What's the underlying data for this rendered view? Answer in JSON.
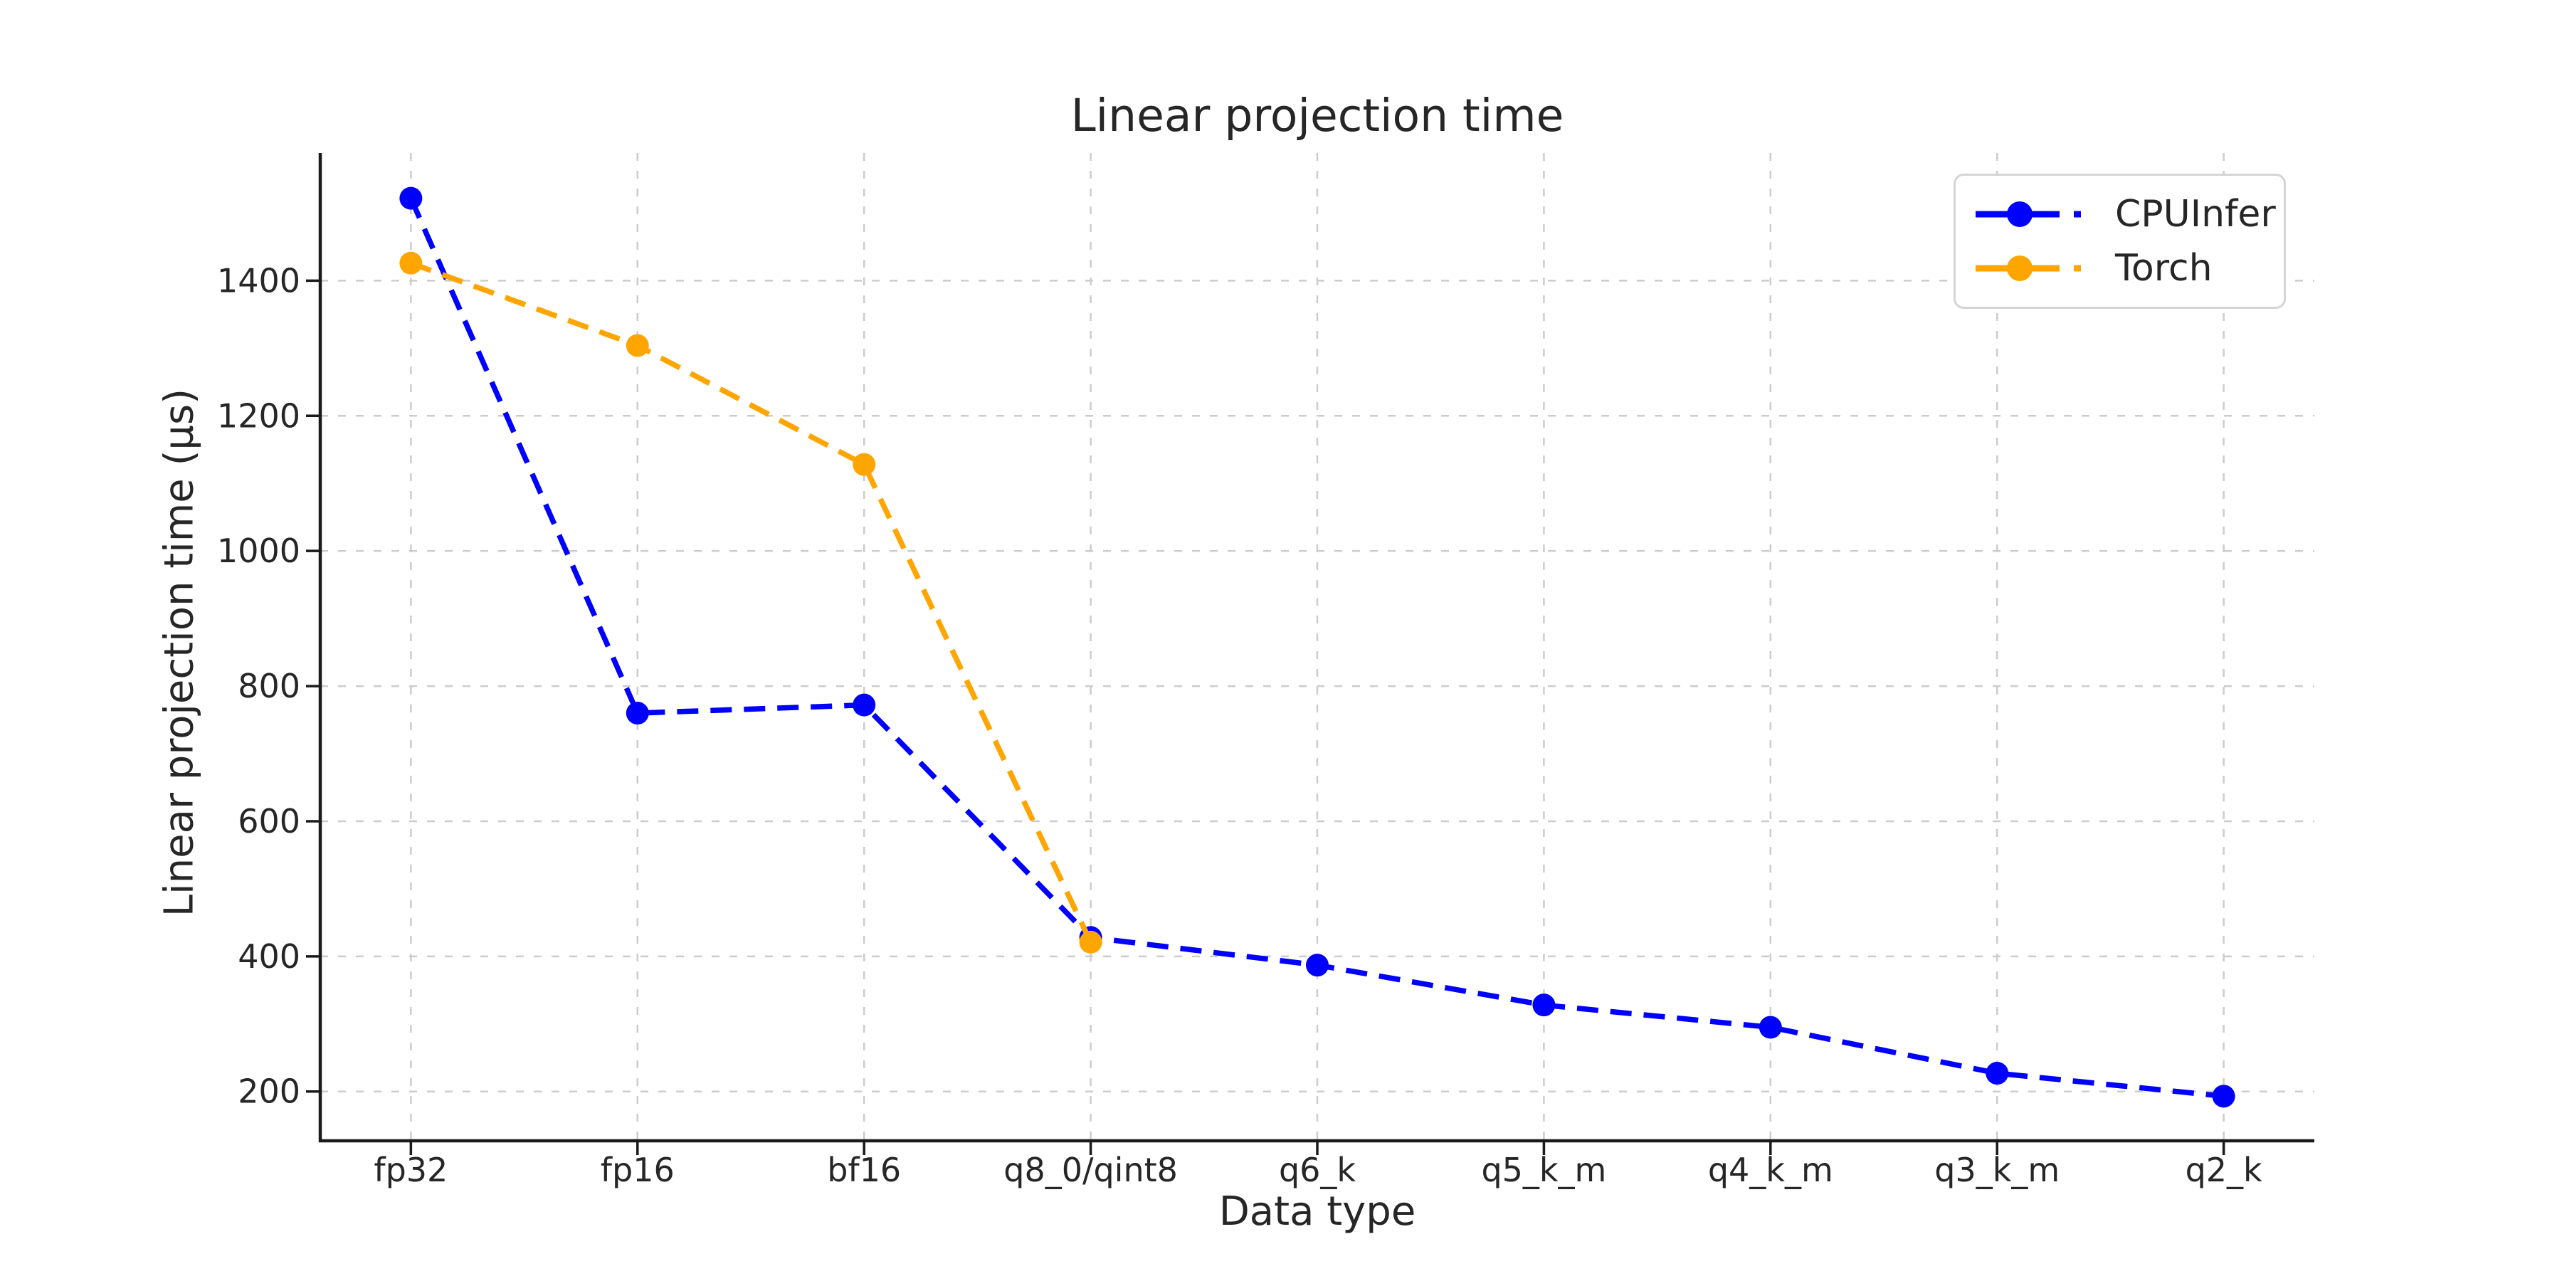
{
  "title": "Linear projection time",
  "chart_data": {
    "type": "line",
    "title": "Linear projection time",
    "xlabel": "Data type",
    "ylabel": "Linear projection time (μs)",
    "categories": [
      "fp32",
      "fp16",
      "bf16",
      "q8_0/qint8",
      "q6_k",
      "q5_k_m",
      "q4_k_m",
      "q3_k_m",
      "q2_k"
    ],
    "series": [
      {
        "name": "CPUInfer",
        "color": "#0000ff",
        "linestyle": "dashed",
        "marker": "circle",
        "values": [
          1522,
          760,
          772,
          428,
          387,
          328,
          295,
          227,
          193
        ]
      },
      {
        "name": "Torch",
        "color": "#ffa500",
        "linestyle": "dashed",
        "marker": "circle",
        "values": [
          1426,
          1304,
          1128,
          421,
          null,
          null,
          null,
          null,
          null
        ]
      }
    ],
    "yticks": [
      200,
      400,
      600,
      800,
      1000,
      1200,
      1400
    ],
    "ylim": [
      127,
      1589
    ],
    "grid": true,
    "legend_position": "upper right"
  },
  "style": {
    "grid_color": "#cccccc",
    "spine_color": "#1a1a1a",
    "text_color": "#262626",
    "legend_border_color": "#d5d5d5",
    "background": "#ffffff"
  }
}
